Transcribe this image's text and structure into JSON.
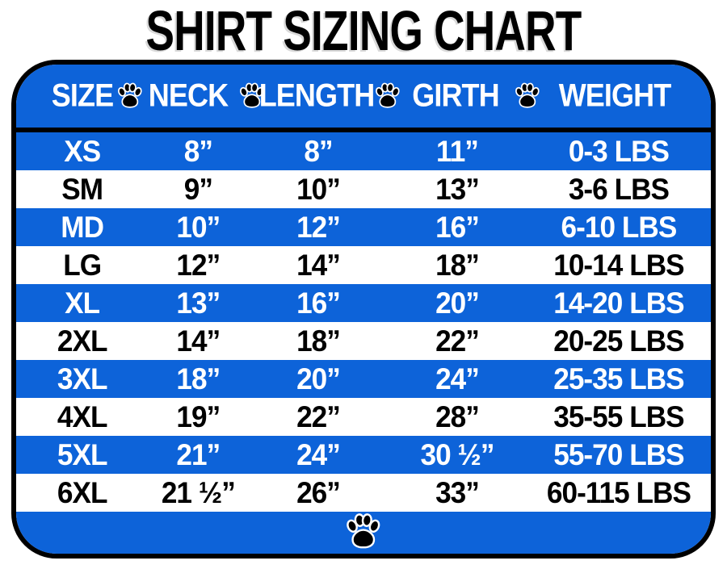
{
  "title": "SHIRT SIZING CHART",
  "colors": {
    "accent_blue": "#0d63d9",
    "border_black": "#000000",
    "background_white": "#ffffff",
    "text_on_blue": "#ffffff",
    "text_on_white": "#000000"
  },
  "icons": {
    "paw": "paw-icon"
  },
  "chart_data": {
    "type": "table",
    "title": "SHIRT SIZING CHART",
    "columns": [
      "SIZE",
      "NECK",
      "LENGTH",
      "GIRTH",
      "WEIGHT"
    ],
    "rows": [
      [
        "XS",
        "8”",
        "8”",
        "11”",
        "0-3 LBS"
      ],
      [
        "SM",
        "9”",
        "10”",
        "13”",
        "3-6 LBS"
      ],
      [
        "MD",
        "10”",
        "12”",
        "16”",
        "6-10 LBS"
      ],
      [
        "LG",
        "12”",
        "14”",
        "18”",
        "10-14 LBS"
      ],
      [
        "XL",
        "13”",
        "16”",
        "20”",
        "14-20 LBS"
      ],
      [
        "2XL",
        "14”",
        "18”",
        "22”",
        "20-25 LBS"
      ],
      [
        "3XL",
        "18”",
        "20”",
        "24”",
        "25-35 LBS"
      ],
      [
        "4XL",
        "19”",
        "22”",
        "28”",
        "35-55 LBS"
      ],
      [
        "5XL",
        "21”",
        "24”",
        "30 ½”",
        "55-70 LBS"
      ],
      [
        "6XL",
        "21 ½”",
        "26”",
        "33”",
        "60-115 LBS"
      ]
    ],
    "row_variants": [
      "blue",
      "white",
      "blue",
      "white",
      "blue",
      "white",
      "blue",
      "white",
      "blue",
      "white"
    ],
    "layout": {
      "striped": true,
      "header_position": "top",
      "header_style": "blue-with-paw-separators",
      "column_center_percents": [
        9.5,
        26.2,
        43.5,
        63.5,
        86.2
      ]
    }
  }
}
